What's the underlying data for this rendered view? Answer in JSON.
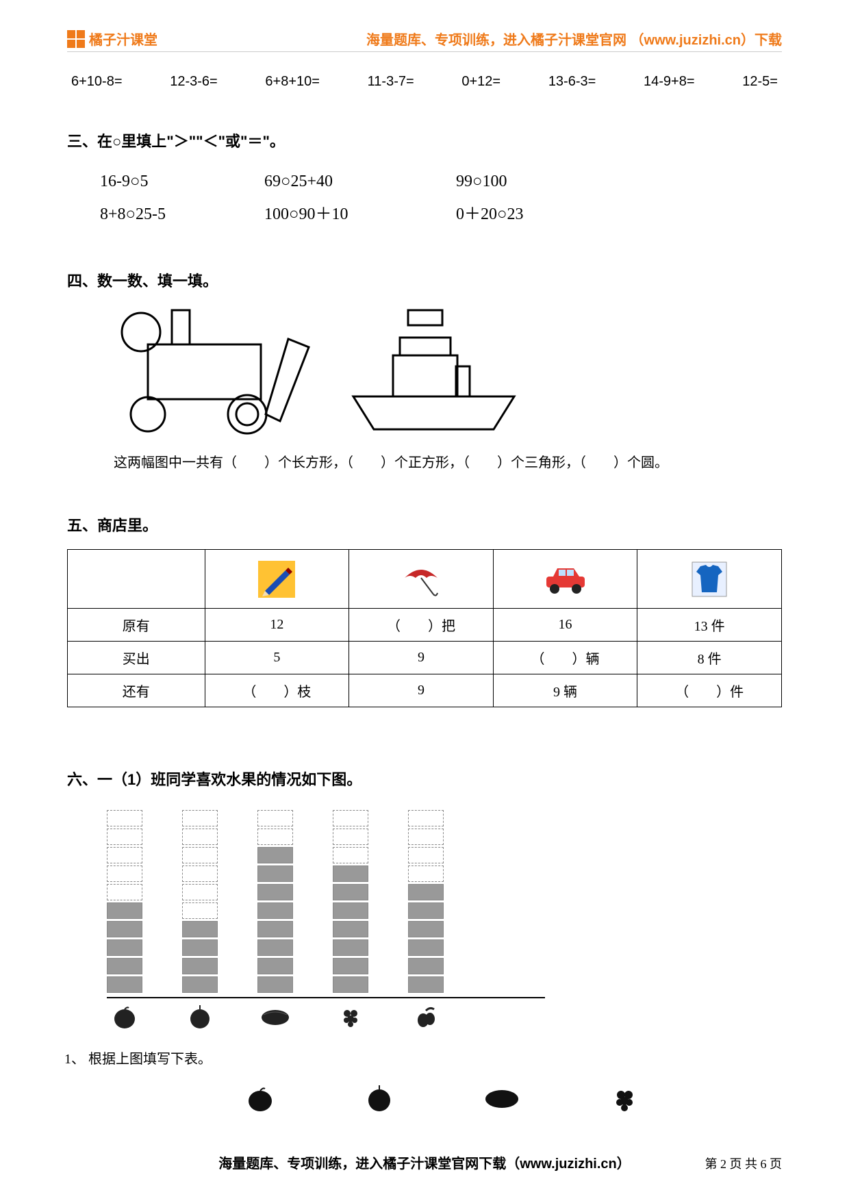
{
  "header": {
    "logo_text": "橘子汁课堂",
    "right_text": "海量题库、专项训练，进入橘子汁课堂官网 （www.juzizhi.cn）下载"
  },
  "arithmetic": [
    "6+10-8=",
    "12-3-6=",
    "6+8+10=",
    "11-3-7=",
    "0+12=",
    "13-6-3=",
    "14-9+8=",
    "12-5="
  ],
  "section3": {
    "heading": "三、在○里填上\"＞\"\"＜\"或\"＝\"。",
    "rows": [
      [
        "16-9○5",
        "69○25+40",
        "99○100"
      ],
      [
        "8+8○25-5",
        "100○90＋10",
        "0＋20○23"
      ]
    ]
  },
  "section4": {
    "heading": "四、数一数、填一填。",
    "caption": "这两幅图中一共有（　　）个长方形，（　　）个正方形，（　　）个三角形，（　　）个圆。"
  },
  "section5": {
    "heading": "五、商店里。",
    "row_labels": [
      "原有",
      "买出",
      "还有"
    ],
    "icons": {
      "pencil": {
        "bg": "#ffc233",
        "main": "#1a4db3"
      },
      "umbrella": {
        "main": "#c62828"
      },
      "car": {
        "body": "#e53935",
        "wheel": "#222222"
      },
      "shirt": {
        "main": "#1565c0"
      }
    },
    "data_rows": [
      [
        "12",
        "（　　）把",
        "16",
        "13 件"
      ],
      [
        "5",
        "9",
        "（　　）辆",
        "8 件"
      ],
      [
        "（　　）枝",
        "9",
        "9 辆",
        "（　　）件"
      ]
    ]
  },
  "section6": {
    "heading": "六、一（1）班同学喜欢水果的情况如下图。",
    "chart": {
      "total_cells": 10,
      "columns": [
        {
          "filled": 5
        },
        {
          "filled": 4
        },
        {
          "filled": 8
        },
        {
          "filled": 7
        },
        {
          "filled": 6
        }
      ]
    },
    "subtext": "1、 根据上图填写下表。"
  },
  "footer": {
    "center": "海量题库、专项训练，进入橘子汁课堂官网下载（www.juzizhi.cn）",
    "right": "第 2 页 共 6 页"
  }
}
